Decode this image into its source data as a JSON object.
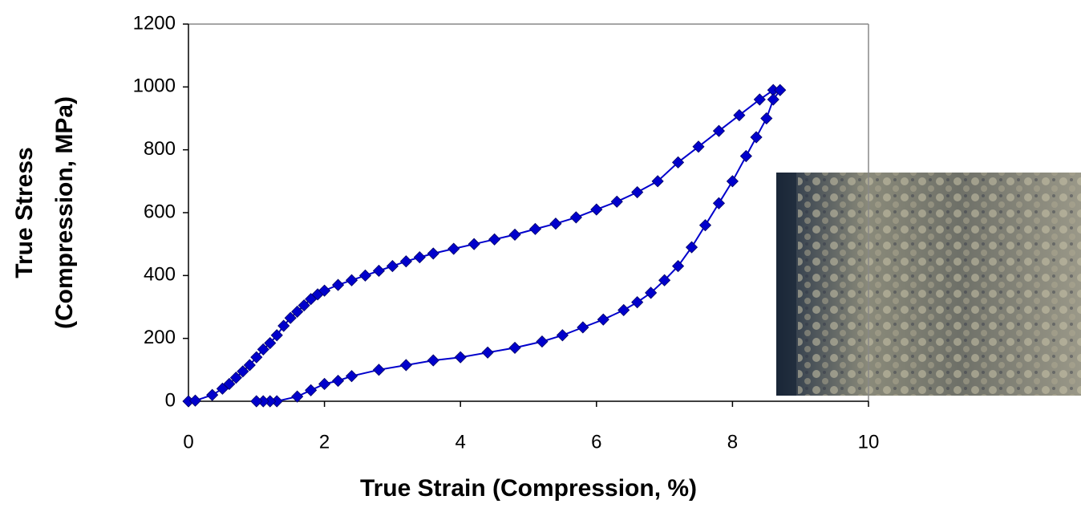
{
  "chart_data": {
    "type": "line",
    "x_label": "True Strain (Compression, %)",
    "y_label": [
      "True Stress",
      "(Compression, MPa)"
    ],
    "x": [
      0,
      0.1,
      0.35,
      0.5,
      0.6,
      0.7,
      0.8,
      0.9,
      1.0,
      1.1,
      1.2,
      1.3,
      1.4,
      1.5,
      1.6,
      1.7,
      1.8,
      1.9,
      2.0,
      2.2,
      2.4,
      2.6,
      2.8,
      3.0,
      3.2,
      3.4,
      3.6,
      3.9,
      4.2,
      4.5,
      4.8,
      5.1,
      5.4,
      5.7,
      6.0,
      6.3,
      6.6,
      6.9,
      7.2,
      7.5,
      7.8,
      8.1,
      8.4,
      8.6,
      8.7,
      8.6,
      8.5,
      8.35,
      8.2,
      8.0,
      7.8,
      7.6,
      7.4,
      7.2,
      7.0,
      6.8,
      6.6,
      6.4,
      6.1,
      5.8,
      5.5,
      5.2,
      4.8,
      4.4,
      4.0,
      3.6,
      3.2,
      2.8,
      2.4,
      2.2,
      2.0,
      1.8,
      1.6,
      1.3,
      1.2,
      1.1,
      1.0
    ],
    "series": [
      {
        "color": "#0000cc",
        "values": [
          0,
          2,
          20,
          40,
          55,
          75,
          95,
          115,
          140,
          165,
          185,
          210,
          240,
          265,
          285,
          305,
          325,
          340,
          352,
          370,
          385,
          400,
          415,
          430,
          445,
          458,
          470,
          485,
          500,
          515,
          530,
          548,
          565,
          585,
          610,
          635,
          665,
          700,
          760,
          810,
          860,
          910,
          960,
          990,
          990,
          960,
          900,
          840,
          780,
          700,
          630,
          560,
          490,
          430,
          385,
          345,
          315,
          290,
          260,
          235,
          210,
          190,
          170,
          155,
          140,
          130,
          115,
          100,
          80,
          65,
          55,
          35,
          15,
          0,
          0,
          0,
          0
        ]
      }
    ],
    "xlim": [
      0,
      10
    ],
    "xticks": [
      0,
      2,
      4,
      6,
      8,
      10
    ],
    "ylim": [
      0,
      1200
    ],
    "yticks": [
      0,
      200,
      400,
      600,
      800,
      1000,
      1200
    ]
  }
}
